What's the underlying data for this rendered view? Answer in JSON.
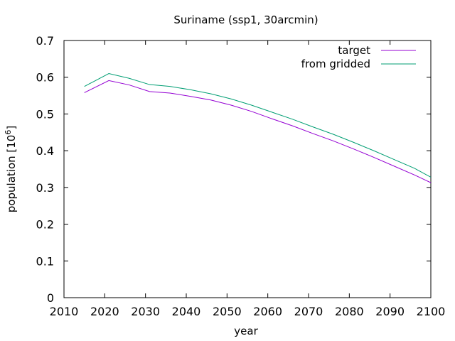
{
  "chart_data": {
    "type": "line",
    "title": "Suriname (ssp1, 30arcmin)",
    "xlabel": "year",
    "ylabel_main": "population [10",
    "ylabel_exp": "6",
    "ylabel_close": "]",
    "xlim": [
      2010,
      2100
    ],
    "ylim": [
      0,
      0.7
    ],
    "xticks": [
      "2010",
      "2020",
      "2030",
      "2040",
      "2050",
      "2060",
      "2070",
      "2080",
      "2090",
      "2100"
    ],
    "yticks": [
      "0",
      "0.1",
      "0.2",
      "0.3",
      "0.4",
      "0.5",
      "0.6",
      "0.7"
    ],
    "legend_position": "top-right",
    "x": [
      2015,
      2021,
      2026,
      2031,
      2036,
      2041,
      2046,
      2051,
      2056,
      2061,
      2066,
      2071,
      2076,
      2081,
      2086,
      2091,
      2096,
      2100
    ],
    "series": [
      {
        "name": "target",
        "color": "#9400d3",
        "values": [
          0.558,
          0.591,
          0.579,
          0.561,
          0.557,
          0.548,
          0.538,
          0.524,
          0.507,
          0.487,
          0.468,
          0.447,
          0.427,
          0.405,
          0.382,
          0.358,
          0.334,
          0.313
        ]
      },
      {
        "name": "from gridded",
        "color": "#009e73",
        "values": [
          0.575,
          0.61,
          0.597,
          0.58,
          0.575,
          0.566,
          0.555,
          0.541,
          0.524,
          0.505,
          0.486,
          0.465,
          0.445,
          0.423,
          0.4,
          0.376,
          0.352,
          0.328
        ]
      }
    ]
  }
}
